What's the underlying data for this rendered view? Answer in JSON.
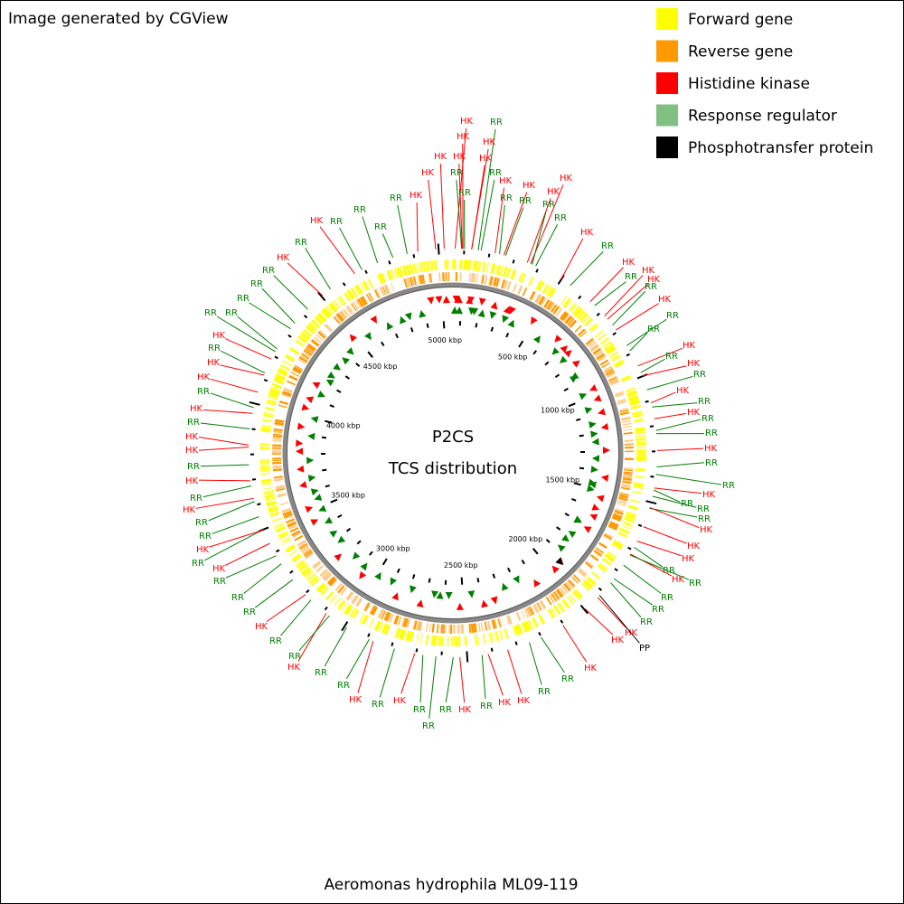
{
  "header": "Image generated by CGView",
  "legend": [
    {
      "label": "Forward gene",
      "color": "#ffff00"
    },
    {
      "label": "Reverse gene",
      "color": "#ff9900"
    },
    {
      "label": "Histidine kinase",
      "color": "#ff0000"
    },
    {
      "label": "Response regulator",
      "color": "#80c080"
    },
    {
      "label": "Phosphotransfer protein",
      "color": "#000000"
    }
  ],
  "center": {
    "title": "P2CS",
    "subtitle": "TCS distribution"
  },
  "footer": "Aeromonas hydrophila ML09-119",
  "scale_labels": [
    "5000 kbp",
    "500 kbp",
    "1000 kbp",
    "1500 kbp",
    "2000 kbp",
    "2500 kbp",
    "3000 kbp",
    "3500 kbp",
    "4000 kbp",
    "4500 kbp"
  ],
  "features": [
    "HK",
    "RR",
    "HK",
    "HK",
    "HK",
    "HK",
    "HK",
    "HK",
    "RR",
    "RR",
    "RR",
    "HK",
    "RR",
    "HK",
    "HK",
    "HK",
    "RR",
    "RR",
    "HK",
    "RR",
    "RR",
    "HK",
    "RR",
    "HK",
    "HK",
    "RR",
    "HK",
    "RR",
    "HK",
    "RR",
    "RR",
    "HK",
    "RR",
    "HK",
    "RR",
    "HK",
    "RR",
    "HK",
    "RR",
    "RR",
    "HK",
    "RR",
    "RR",
    "HK",
    "RR",
    "RR",
    "RR",
    "HK",
    "HK",
    "HK",
    "RR",
    "HK",
    "RR",
    "RR",
    "RR",
    "RR",
    "HK",
    "HK",
    "PP",
    "HK",
    "RR",
    "RR",
    "HK",
    "HK",
    "RR",
    "HK",
    "RR",
    "RR",
    "RR",
    "HK",
    "RR",
    "HK",
    "RR",
    "RR",
    "HK",
    "RR",
    "RR",
    "HK",
    "RR",
    "RR",
    "RR",
    "HK",
    "RR",
    "HK",
    "RR",
    "RR",
    "HK",
    "RR",
    "HK",
    "RR",
    "HK",
    "HK",
    "RR",
    "HK",
    "RR",
    "HK",
    "HK",
    "RR",
    "HK",
    "RR",
    "RR",
    "RR",
    "RR",
    "RR",
    "HK",
    "RR",
    "RR",
    "HK",
    "RR",
    "RR"
  ]
}
